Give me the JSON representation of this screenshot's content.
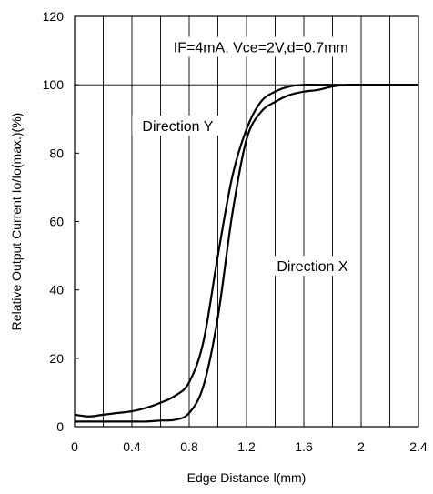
{
  "chart_data": {
    "type": "line",
    "title": "",
    "xlabel": "Edge Distance l(mm)",
    "ylabel": "Relative Output Current Io/Io(max.)(%)",
    "xlim": [
      0,
      2.4
    ],
    "ylim": [
      0,
      120
    ],
    "x_ticks": [
      0,
      0.4,
      0.8,
      1.2,
      1.6,
      2,
      2.4
    ],
    "x_tick_labels": [
      "0",
      "0.4",
      "0.8",
      "1.2",
      "1.6",
      "2",
      "2.4"
    ],
    "y_ticks": [
      0,
      20,
      40,
      60,
      80,
      100,
      120
    ],
    "y_tick_labels": [
      "0",
      "20",
      "40",
      "60",
      "80",
      "100",
      "120"
    ],
    "grid": {
      "vertical_step": 0.2,
      "horizontal": [
        100
      ]
    },
    "legend": "none",
    "annotations": [
      {
        "text": "IF=4mA, Vce=2V,d=0.7mm",
        "x": 1.3,
        "y": 110
      },
      {
        "text": "Direction Y",
        "x": 0.72,
        "y": 87
      },
      {
        "text": "Direction X",
        "x": 1.66,
        "y": 46
      }
    ],
    "series": [
      {
        "label": "Direction Y",
        "x": [
          0,
          0.1,
          0.2,
          0.3,
          0.4,
          0.5,
          0.6,
          0.7,
          0.8,
          0.9,
          1.0,
          1.1,
          1.2,
          1.3,
          1.4,
          1.5,
          1.6,
          1.7,
          1.8,
          1.9,
          2.0,
          2.2,
          2.4
        ],
        "y": [
          3.5,
          3,
          3.5,
          4,
          4.5,
          5.5,
          7,
          9,
          13,
          25,
          50,
          73,
          87,
          95,
          98,
          99.5,
          100,
          100,
          100,
          100,
          100,
          100,
          100
        ]
      },
      {
        "label": "Direction X",
        "x": [
          0,
          0.1,
          0.2,
          0.3,
          0.4,
          0.5,
          0.6,
          0.7,
          0.8,
          0.9,
          1.0,
          1.1,
          1.2,
          1.3,
          1.4,
          1.5,
          1.6,
          1.7,
          1.8,
          1.9,
          2.0,
          2.2,
          2.4
        ],
        "y": [
          1.5,
          1.5,
          1.5,
          1.5,
          1.5,
          1.5,
          1.8,
          2,
          4,
          12,
          32,
          62,
          84,
          92,
          95,
          97,
          98,
          98.5,
          99.5,
          100,
          100,
          100,
          100
        ]
      }
    ]
  }
}
